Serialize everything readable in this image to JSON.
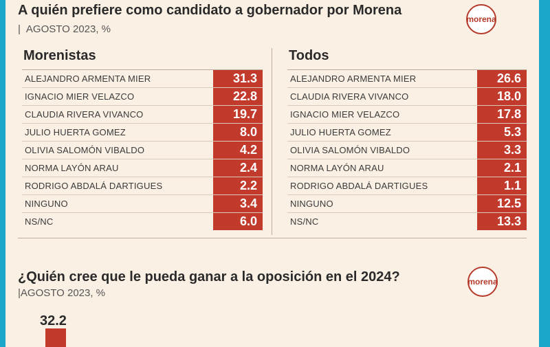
{
  "title": "A quién prefiere como candidato a gobernador por Morena",
  "subtitle": "AGOSTO 2023, %",
  "logo_text": "morena",
  "colors": {
    "accent": "#c23a2c",
    "background": "#faf0e4",
    "frame": "#1aa7c9"
  },
  "chart_data": [
    {
      "type": "table",
      "title": "Morenistas",
      "rows": [
        {
          "name": "ALEJANDRO ARMENTA MIER",
          "value": "31.3"
        },
        {
          "name": "IGNACIO MIER VELAZCO",
          "value": "22.8"
        },
        {
          "name": "CLAUDIA RIVERA VIVANCO",
          "value": "19.7"
        },
        {
          "name": "JULIO HUERTA GOMEZ",
          "value": "8.0"
        },
        {
          "name": "OLIVIA SALOMÓN VIBALDO",
          "value": "4.2"
        },
        {
          "name": "NORMA LAYÓN ARAU",
          "value": "2.4"
        },
        {
          "name": "RODRIGO ABDALÁ DARTIGUES",
          "value": "2.2"
        },
        {
          "name": "NINGUNO",
          "value": "3.4"
        },
        {
          "name": "NS/NC",
          "value": "6.0"
        }
      ]
    },
    {
      "type": "table",
      "title": "Todos",
      "rows": [
        {
          "name": "ALEJANDRO ARMENTA MIER",
          "value": "26.6"
        },
        {
          "name": "CLAUDIA RIVERA VIVANCO",
          "value": "18.0"
        },
        {
          "name": "IGNACIO MIER VELAZCO",
          "value": "17.8"
        },
        {
          "name": "JULIO HUERTA GOMEZ",
          "value": "5.3"
        },
        {
          "name": "OLIVIA SALOMÓN VIBALDO",
          "value": "3.3"
        },
        {
          "name": "NORMA LAYÓN ARAU",
          "value": "2.1"
        },
        {
          "name": "RODRIGO ABDALÁ DARTIGUES",
          "value": "1.1"
        },
        {
          "name": "NINGUNO",
          "value": "12.5"
        },
        {
          "name": "NS/NC",
          "value": "13.3"
        }
      ]
    },
    {
      "type": "bar",
      "title": "¿Quién cree que le pueda ganar a la oposición en el 2024?",
      "subtitle": "AGOSTO 2023, %",
      "values": [
        32.2
      ]
    }
  ]
}
